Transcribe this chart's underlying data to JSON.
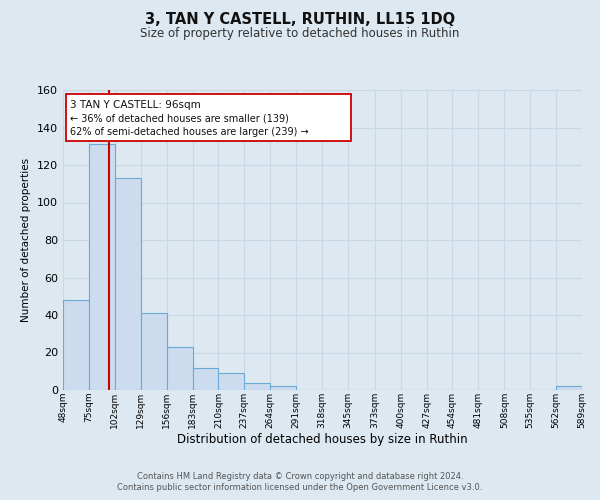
{
  "title": "3, TAN Y CASTELL, RUTHIN, LL15 1DQ",
  "subtitle": "Size of property relative to detached houses in Ruthin",
  "xlabel": "Distribution of detached houses by size in Ruthin",
  "ylabel": "Number of detached properties",
  "footer_line1": "Contains HM Land Registry data © Crown copyright and database right 2024.",
  "footer_line2": "Contains public sector information licensed under the Open Government Licence v3.0.",
  "bins": [
    48,
    75,
    102,
    129,
    156,
    183,
    210,
    237,
    264,
    291,
    318,
    345,
    373,
    400,
    427,
    454,
    481,
    508,
    535,
    562,
    589
  ],
  "counts": [
    48,
    131,
    113,
    41,
    23,
    12,
    9,
    4,
    2,
    0,
    0,
    0,
    0,
    0,
    0,
    0,
    0,
    0,
    0,
    2
  ],
  "bar_color": "#ccdcee",
  "bar_edge_color": "#6aaad4",
  "marker_value": 96,
  "marker_color": "#cc0000",
  "annotation_line1": "3 TAN Y CASTELL: 96sqm",
  "annotation_line2": "← 36% of detached houses are smaller (139)",
  "annotation_line3": "62% of semi-detached houses are larger (239) →",
  "ylim": [
    0,
    160
  ],
  "bg_color": "#dde8f0",
  "plot_bg_color": "#dde8f0",
  "grid_color": "#c8d8e4",
  "tick_labels": [
    "48sqm",
    "75sqm",
    "102sqm",
    "129sqm",
    "156sqm",
    "183sqm",
    "210sqm",
    "237sqm",
    "264sqm",
    "291sqm",
    "318sqm",
    "345sqm",
    "373sqm",
    "400sqm",
    "427sqm",
    "454sqm",
    "481sqm",
    "508sqm",
    "535sqm",
    "562sqm",
    "589sqm"
  ]
}
